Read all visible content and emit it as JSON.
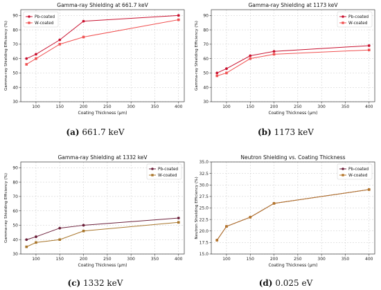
{
  "chart_data": [
    {
      "type": "line",
      "title": "Gamma-ray Shielding at 661.7 keV",
      "xlabel": "Coating Thickness (µm)",
      "ylabel": "Gamma-ray Shielding Efficiency (%)",
      "x": [
        80,
        100,
        150,
        200,
        400
      ],
      "xticks": [
        100,
        150,
        200,
        250,
        300,
        350,
        400
      ],
      "yticks": [
        30,
        40,
        50,
        60,
        70,
        80,
        90
      ],
      "xlim": [
        68,
        412
      ],
      "ylim": [
        30,
        94
      ],
      "grid": true,
      "legend_position": "top-left",
      "series": [
        {
          "name": "Pb-coated",
          "values": [
            60,
            63,
            73,
            86,
            90
          ],
          "color": "#c8102e",
          "marker": "circle"
        },
        {
          "name": "W-coated",
          "values": [
            56,
            60,
            70,
            75,
            87
          ],
          "color": "#f05050",
          "marker": "square"
        }
      ],
      "caption_letter": "(a)",
      "caption_text": "661.7 keV"
    },
    {
      "type": "line",
      "title": "Gamma-ray Shielding at 1173 keV",
      "xlabel": "Coating Thickness (µm)",
      "ylabel": "Gamma-ray Shielding Efficiency (%)",
      "x": [
        80,
        100,
        150,
        200,
        400
      ],
      "xticks": [
        100,
        150,
        200,
        250,
        300,
        350,
        400
      ],
      "yticks": [
        30,
        40,
        50,
        60,
        70,
        80,
        90
      ],
      "xlim": [
        68,
        412
      ],
      "ylim": [
        30,
        94
      ],
      "grid": true,
      "legend_position": "top-right",
      "series": [
        {
          "name": "Pb-coated",
          "values": [
            50,
            53,
            62,
            65,
            69
          ],
          "color": "#c8102e",
          "marker": "circle"
        },
        {
          "name": "W-coated",
          "values": [
            48,
            50,
            60,
            63,
            66
          ],
          "color": "#f05050",
          "marker": "square"
        }
      ],
      "caption_letter": "(b)",
      "caption_text": "1173 keV"
    },
    {
      "type": "line",
      "title": "Gamma-ray Shielding at 1332 keV",
      "xlabel": "Coating Thickness (µm)",
      "ylabel": "Gamma-ray Shielding Efficiency (%)",
      "x": [
        80,
        100,
        150,
        200,
        400
      ],
      "xticks": [
        100,
        150,
        200,
        250,
        300,
        350,
        400
      ],
      "yticks": [
        30,
        40,
        50,
        60,
        70,
        80,
        90
      ],
      "xlim": [
        68,
        412
      ],
      "ylim": [
        30,
        94
      ],
      "grid": true,
      "legend_position": "top-right",
      "series": [
        {
          "name": "Pb-coated",
          "values": [
            40,
            42,
            48,
            50,
            55
          ],
          "color": "#6b1f3a",
          "marker": "circle"
        },
        {
          "name": "W-coated",
          "values": [
            35,
            38,
            40,
            46,
            52
          ],
          "color": "#a8752a",
          "marker": "square"
        }
      ],
      "caption_letter": "(c)",
      "caption_text": "1332 keV"
    },
    {
      "type": "line",
      "title": "Neutron Shielding vs. Coating Thickness",
      "xlabel": "Coating Thickness (µm)",
      "ylabel": "Neutron Shielding Efficiency (%)",
      "x": [
        80,
        100,
        150,
        200,
        400
      ],
      "xticks": [
        100,
        150,
        200,
        250,
        300,
        350,
        400
      ],
      "yticks": [
        15.0,
        17.5,
        20.0,
        22.5,
        25.0,
        27.5,
        30.0,
        32.5,
        35.0
      ],
      "ytick_decimals": 1,
      "xlim": [
        68,
        412
      ],
      "ylim": [
        15,
        35
      ],
      "grid": true,
      "legend_position": "top-right",
      "series": [
        {
          "name": "Pb-coated",
          "values": [
            18,
            21,
            23,
            26,
            29
          ],
          "color": "#6b1f3a",
          "marker": "circle"
        },
        {
          "name": "W-coated",
          "values": [
            18,
            21,
            23,
            26,
            29
          ],
          "color": "#b5762a",
          "marker": "square"
        }
      ],
      "caption_letter": "(d)",
      "caption_text": "0.025 eV"
    }
  ]
}
